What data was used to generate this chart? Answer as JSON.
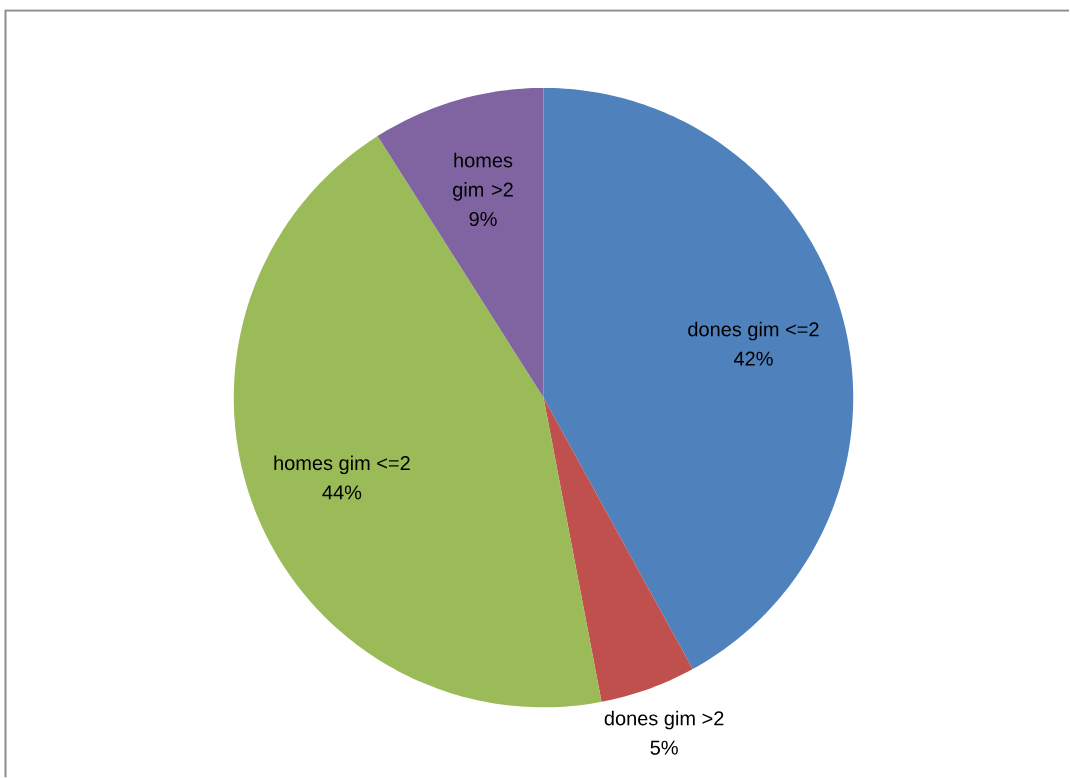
{
  "chart_data": {
    "type": "pie",
    "categories": [
      "dones gim <=2",
      "dones gim >2",
      "homes gim <=2",
      "homes gim >2"
    ],
    "values": [
      42,
      5,
      44,
      9
    ],
    "colors": [
      "#4f81bd",
      "#c0504d",
      "#9bbb59",
      "#8064a2"
    ],
    "value_labels": [
      "42%",
      "5%",
      "44%",
      "9%"
    ]
  }
}
